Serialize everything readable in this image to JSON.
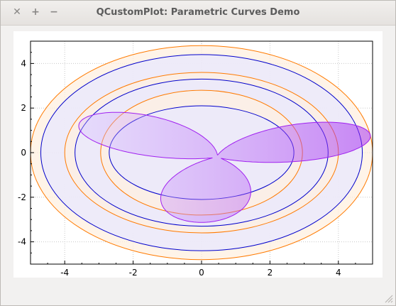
{
  "window": {
    "title": "QCustomPlot: Parametric Curves Demo",
    "buttons": {
      "close": "✕",
      "maximize": "+",
      "minimize": "−"
    }
  },
  "chart_data": {
    "type": "line",
    "title": "",
    "xlabel": "",
    "ylabel": "",
    "xlim": [
      -5,
      5
    ],
    "ylim": [
      -5,
      5
    ],
    "grid": true,
    "x_ticks": [
      -4,
      -2,
      0,
      2,
      4
    ],
    "y_ticks": [
      -4,
      -2,
      0,
      2,
      4
    ],
    "series": [
      {
        "kind": "orange-ellipse",
        "params": {
          "cx": 0,
          "cy": 0,
          "rx": 5.0,
          "ry": 4.8
        },
        "stroke": "#ff7a00",
        "fill": "#fff0e0"
      },
      {
        "kind": "blue-ellipse",
        "params": {
          "cx": 0,
          "cy": 0,
          "rx": 4.7,
          "ry": 4.4
        },
        "stroke": "#0000cc",
        "fill": "#e8e8ff"
      },
      {
        "kind": "orange-ellipse",
        "params": {
          "cx": 0,
          "cy": 0,
          "rx": 4.0,
          "ry": 3.6
        },
        "stroke": "#ff7a00",
        "fill": "#fff0e0"
      },
      {
        "kind": "blue-ellipse",
        "params": {
          "cx": 0,
          "cy": 0,
          "rx": 3.7,
          "ry": 3.3
        },
        "stroke": "#0000cc",
        "fill": "#e8e8ff"
      },
      {
        "kind": "orange-ellipse",
        "params": {
          "cx": 0,
          "cy": 0,
          "rx": 2.95,
          "ry": 2.8
        },
        "stroke": "#ff7a00",
        "fill": "#fff0e0"
      },
      {
        "kind": "blue-ellipse",
        "params": {
          "cx": 0,
          "cy": 0,
          "rx": 2.7,
          "ry": 2.1
        },
        "stroke": "#0000cc",
        "fill": "#e8e8ff"
      },
      {
        "kind": "trefoil",
        "stroke": "#a020f0",
        "fill": "#d8b0ff"
      }
    ]
  }
}
